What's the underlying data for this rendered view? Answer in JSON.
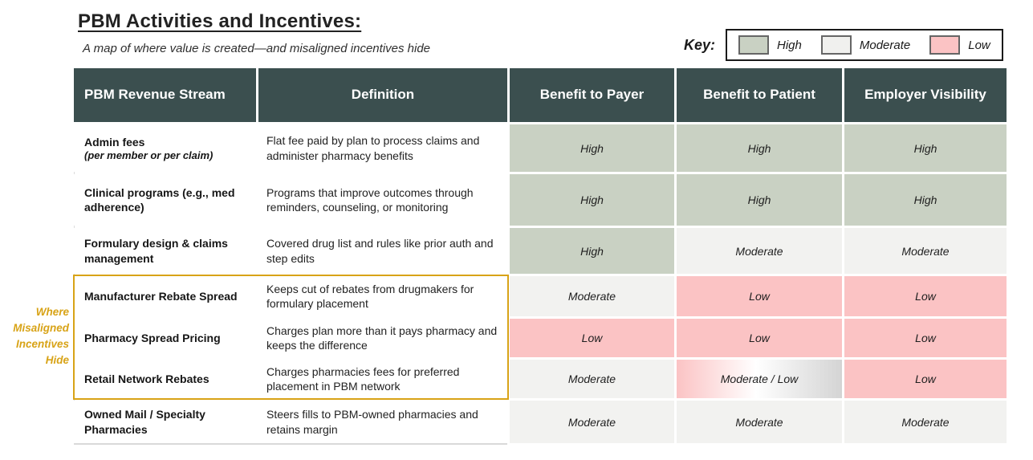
{
  "page": {
    "title": "PBM Activities and Incentives:",
    "subtitle": "A map of where value is created—and misaligned incentives hide"
  },
  "key": {
    "label": "Key:",
    "items": [
      {
        "label": "High",
        "color": "#c9d1c3"
      },
      {
        "label": "Moderate",
        "color": "#f0f0ee"
      },
      {
        "label": "Low",
        "color": "#fbc3c4"
      }
    ]
  },
  "annotation": {
    "lines": [
      "Where",
      "Misaligned",
      "Incentives",
      "Hide"
    ]
  },
  "table": {
    "headers": [
      "PBM Revenue Stream",
      "Definition",
      "Benefit to Payer",
      "Benefit to Patient",
      "Employer Visibility"
    ],
    "rows": [
      {
        "stream": "Admin fees",
        "stream_note": "(per member or per claim)",
        "definition": "Flat fee paid by plan to process claims and administer pharmacy benefits",
        "payer": {
          "label": "High",
          "level": "high"
        },
        "patient": {
          "label": "High",
          "level": "high"
        },
        "employer": {
          "label": "High",
          "level": "high"
        }
      },
      {
        "stream": "Clinical programs (e.g., med adherence)",
        "definition": "Programs that improve outcomes through reminders, counseling, or monitoring",
        "payer": {
          "label": "High",
          "level": "high"
        },
        "patient": {
          "label": "High",
          "level": "high"
        },
        "employer": {
          "label": "High",
          "level": "high"
        }
      },
      {
        "stream": "Formulary design & claims management",
        "definition": "Covered drug list and rules like prior auth and step edits",
        "payer": {
          "label": "High",
          "level": "high"
        },
        "patient": {
          "label": "Moderate",
          "level": "moderate"
        },
        "employer": {
          "label": "Moderate",
          "level": "moderate"
        }
      },
      {
        "stream": "Manufacturer Rebate Spread",
        "definition": "Keeps cut of rebates from drugmakers for formulary placement",
        "payer": {
          "label": "Moderate",
          "level": "moderate"
        },
        "patient": {
          "label": "Low",
          "level": "low"
        },
        "employer": {
          "label": "Low",
          "level": "low"
        },
        "highlighted": true
      },
      {
        "stream": "Pharmacy Spread Pricing",
        "definition": "Charges plan more than it pays pharmacy and keeps the difference",
        "payer": {
          "label": "Low",
          "level": "low"
        },
        "patient": {
          "label": "Low",
          "level": "low"
        },
        "employer": {
          "label": "Low",
          "level": "low"
        },
        "highlighted": true
      },
      {
        "stream": "Retail Network Rebates",
        "definition": "Charges pharmacies fees for preferred placement in PBM network",
        "payer": {
          "label": "Moderate",
          "level": "moderate"
        },
        "patient": {
          "label": "Moderate / Low",
          "level": "moderate-low"
        },
        "employer": {
          "label": "Low",
          "level": "low"
        },
        "highlighted": true
      },
      {
        "stream": "Owned Mail / Specialty Pharmacies",
        "definition": "Steers fills to PBM-owned pharmacies and retains margin",
        "payer": {
          "label": "Moderate",
          "level": "moderate"
        },
        "patient": {
          "label": "Moderate",
          "level": "moderate"
        },
        "employer": {
          "label": "Moderate",
          "level": "moderate"
        }
      }
    ]
  },
  "colors": {
    "header_bg": "#3b4f4f",
    "high": "#c9d1c3",
    "moderate": "#f2f2f0",
    "low": "#fbc3c4",
    "gradient_end": "#d4d4d4",
    "gold": "#d8a317",
    "key_border": "#1a1a1a",
    "swatch_border": "#666666"
  }
}
